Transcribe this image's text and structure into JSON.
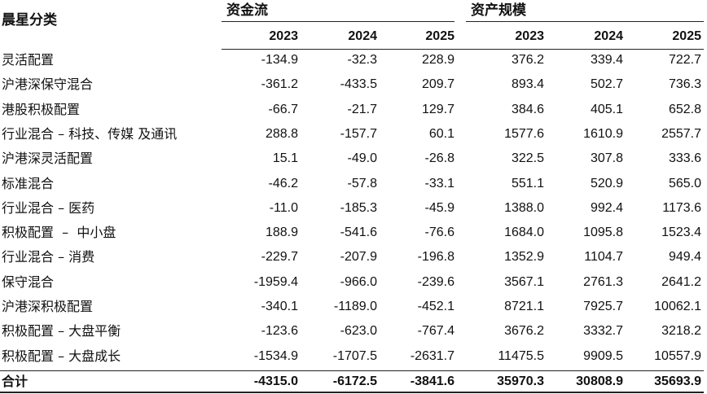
{
  "header": {
    "category": "晨星分类",
    "groups": [
      "资金流",
      "资产规模"
    ],
    "years": [
      "2023",
      "2024",
      "2025",
      "2023",
      "2024",
      "2025"
    ]
  },
  "rows": [
    {
      "label": "灵活配置",
      "values": [
        "-134.9",
        "-32.3",
        "228.9",
        "376.2",
        "339.4",
        "722.7"
      ]
    },
    {
      "label": "沪港深保守混合",
      "values": [
        "-361.2",
        "-433.5",
        "209.7",
        "893.4",
        "502.7",
        "736.3"
      ]
    },
    {
      "label": "港股积极配置",
      "values": [
        "-66.7",
        "-21.7",
        "129.7",
        "384.6",
        "405.1",
        "652.8"
      ]
    },
    {
      "label": "行业混合 – 科技、传媒 及通讯",
      "values": [
        "288.8",
        "-157.7",
        "60.1",
        "1577.6",
        "1610.9",
        "2557.7"
      ]
    },
    {
      "label": "沪港深灵活配置",
      "values": [
        "15.1",
        "-49.0",
        "-26.8",
        "322.5",
        "307.8",
        "333.6"
      ]
    },
    {
      "label": "标准混合",
      "values": [
        "-46.2",
        "-57.8",
        "-33.1",
        "551.1",
        "520.9",
        "565.0"
      ]
    },
    {
      "label": "行业混合 – 医药",
      "values": [
        "-11.0",
        "-185.3",
        "-45.9",
        "1388.0",
        "992.4",
        "1173.6"
      ]
    },
    {
      "label": "积极配置  –  中小盘",
      "values": [
        "188.9",
        "-541.6",
        "-76.6",
        "1684.0",
        "1095.8",
        "1523.4"
      ]
    },
    {
      "label": "行业混合 – 消费",
      "values": [
        "-229.7",
        "-207.9",
        "-196.8",
        "1352.9",
        "1104.7",
        "949.4"
      ]
    },
    {
      "label": "保守混合",
      "values": [
        "-1959.4",
        "-966.0",
        "-239.6",
        "3567.1",
        "2761.3",
        "2641.2"
      ]
    },
    {
      "label": "沪港深积极配置",
      "values": [
        "-340.1",
        "-1189.0",
        "-452.1",
        "8721.1",
        "7925.7",
        "10062.1"
      ]
    },
    {
      "label": "积极配置 – 大盘平衡",
      "values": [
        "-123.6",
        "-623.0",
        "-767.4",
        "3676.2",
        "3332.7",
        "3218.2"
      ]
    },
    {
      "label": "积极配置 – 大盘成长",
      "values": [
        "-1534.9",
        "-1707.5",
        "-2631.7",
        "11475.5",
        "9909.5",
        "10557.9"
      ]
    }
  ],
  "total": {
    "label": "合计",
    "values": [
      "-4315.0",
      "-6172.5",
      "-3841.6",
      "35970.3",
      "30808.9",
      "35693.9"
    ]
  }
}
